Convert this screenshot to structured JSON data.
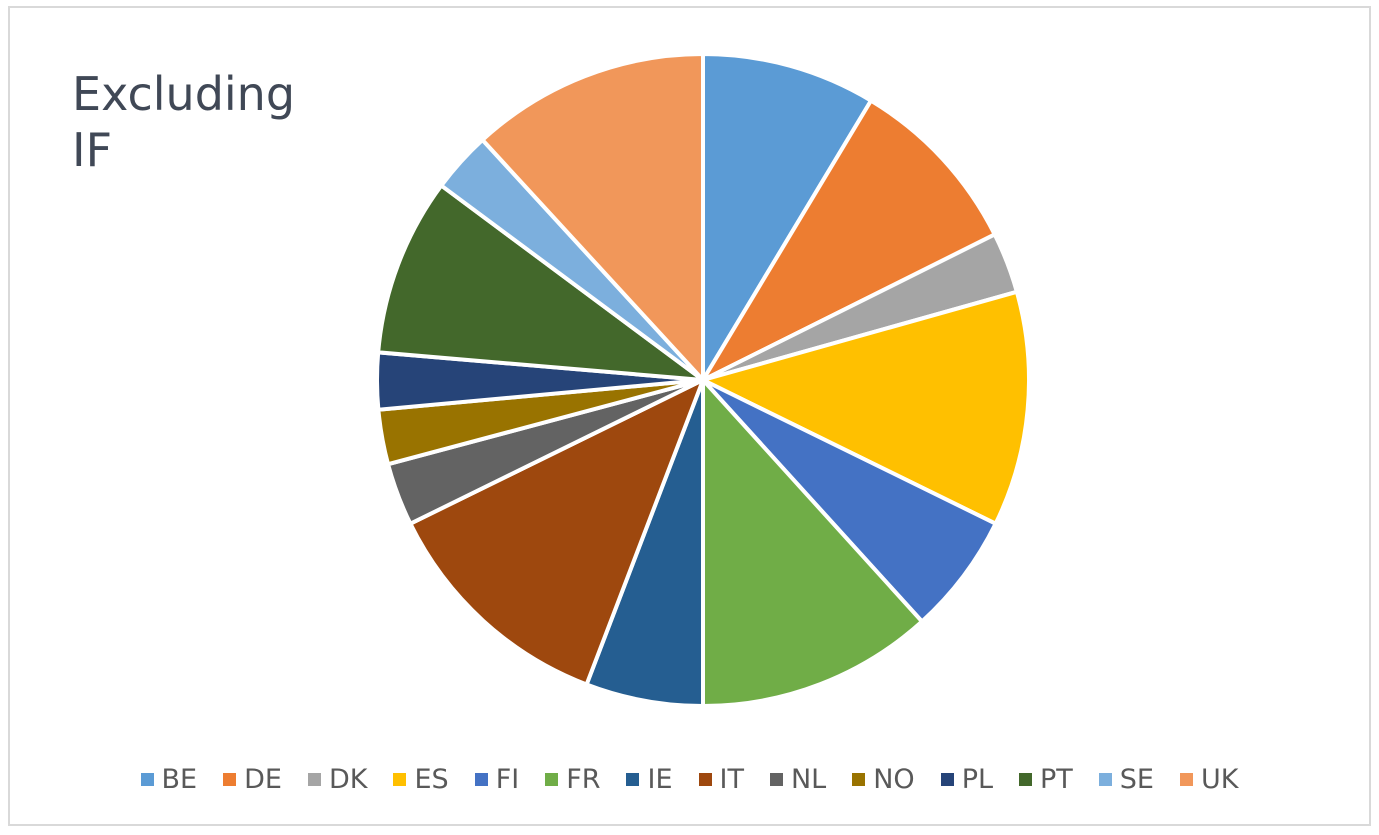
{
  "chart_data": {
    "type": "pie",
    "title": "Excluding IF",
    "categories": [
      "BE",
      "DE",
      "DK",
      "ES",
      "FI",
      "FR",
      "IE",
      "IT",
      "NL",
      "NO",
      "PL",
      "PT",
      "SE",
      "UK"
    ],
    "values": [
      8.6,
      9.0,
      3.0,
      11.6,
      6.0,
      11.7,
      5.8,
      11.9,
      3.1,
      2.7,
      2.8,
      8.8,
      3.0,
      11.8
    ],
    "colors": [
      "#5b9bd5",
      "#ed7d31",
      "#a5a5a5",
      "#ffc000",
      "#4472c4",
      "#70ad47",
      "#255e91",
      "#9e480e",
      "#636363",
      "#997300",
      "#264478",
      "#43682b",
      "#7cafdd",
      "#f1975a"
    ],
    "legend": "bottom"
  }
}
